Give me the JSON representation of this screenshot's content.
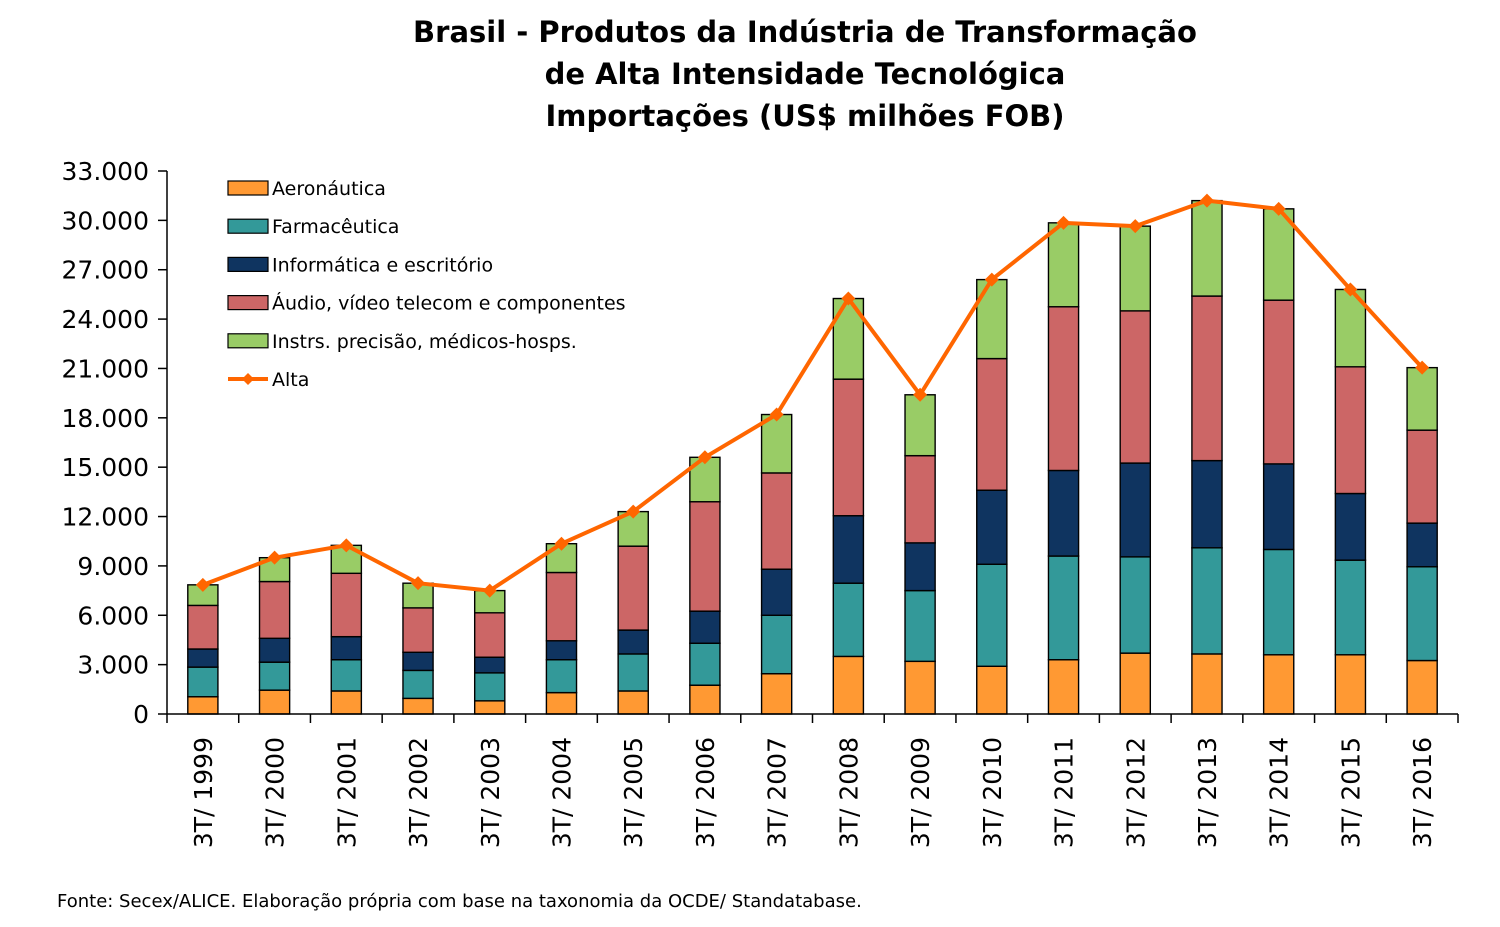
{
  "title_lines": [
    "Brasil - Produtos da Indústria de Transformação",
    "de Alta Intensidade Tecnológica",
    "Importações (US$ milhões FOB)"
  ],
  "source": "Fonte: Secex/ALICE. Elaboração própria com base na taxonomia da OCDE/ Standatabase.",
  "chart_data": {
    "type": "bar",
    "stacked": true,
    "categories": [
      "3T/ 1999",
      "3T/ 2000",
      "3T/ 2001",
      "3T/ 2002",
      "3T/ 2003",
      "3T/ 2004",
      "3T/ 2005",
      "3T/ 2006",
      "3T/ 2007",
      "3T/ 2008",
      "3T/ 2009",
      "3T/ 2010",
      "3T/ 2011",
      "3T/ 2012",
      "3T/ 2013",
      "3T/ 2014",
      "3T/ 2015",
      "3T/ 2016"
    ],
    "ylim": [
      0,
      33000
    ],
    "yticks": [
      0,
      3000,
      6000,
      9000,
      12000,
      15000,
      18000,
      21000,
      24000,
      27000,
      30000,
      33000
    ],
    "ytick_labels": [
      "0",
      "3.000",
      "6.000",
      "9.000",
      "12.000",
      "15.000",
      "18.000",
      "21.000",
      "24.000",
      "27.000",
      "30.000",
      "33.000"
    ],
    "legend_position": "top-left",
    "series": [
      {
        "name": "Aeronáutica",
        "color": "#FF9933",
        "values": [
          1050,
          1450,
          1400,
          950,
          800,
          1300,
          1400,
          1750,
          2450,
          3500,
          3200,
          2900,
          3300,
          3700,
          3650,
          3600,
          3600,
          3250
        ]
      },
      {
        "name": "Farmacêutica",
        "color": "#339999",
        "values": [
          1800,
          1700,
          1900,
          1700,
          1700,
          2000,
          2250,
          2550,
          3550,
          4450,
          4300,
          6200,
          6300,
          5850,
          6450,
          6400,
          5750,
          5700
        ]
      },
      {
        "name": "Informática e escritório",
        "color": "#0F3460",
        "values": [
          1100,
          1450,
          1400,
          1100,
          950,
          1150,
          1450,
          1950,
          2800,
          4100,
          2900,
          4500,
          5200,
          5700,
          5300,
          5200,
          4050,
          2650
        ]
      },
      {
        "name": "Áudio, vídeo telecom e componentes",
        "color": "#CC6666",
        "values": [
          2650,
          3450,
          3850,
          2700,
          2700,
          4150,
          5100,
          6650,
          5850,
          8300,
          5300,
          8000,
          9950,
          9250,
          10000,
          9950,
          7700,
          5650
        ]
      },
      {
        "name": "Instrs. precisão, médicos-hosps.",
        "color": "#99CC66",
        "values": [
          1250,
          1450,
          1700,
          1500,
          1350,
          1750,
          2100,
          2700,
          3550,
          4900,
          3700,
          4800,
          5100,
          5150,
          5800,
          5550,
          4700,
          3800
        ]
      },
      {
        "name": "Alta",
        "type": "line",
        "color": "#FF6600",
        "values": [
          7850,
          9500,
          10250,
          7950,
          7500,
          10350,
          12300,
          15600,
          18200,
          25250,
          19400,
          26400,
          29850,
          29650,
          31200,
          30700,
          25800,
          21050
        ]
      }
    ]
  }
}
